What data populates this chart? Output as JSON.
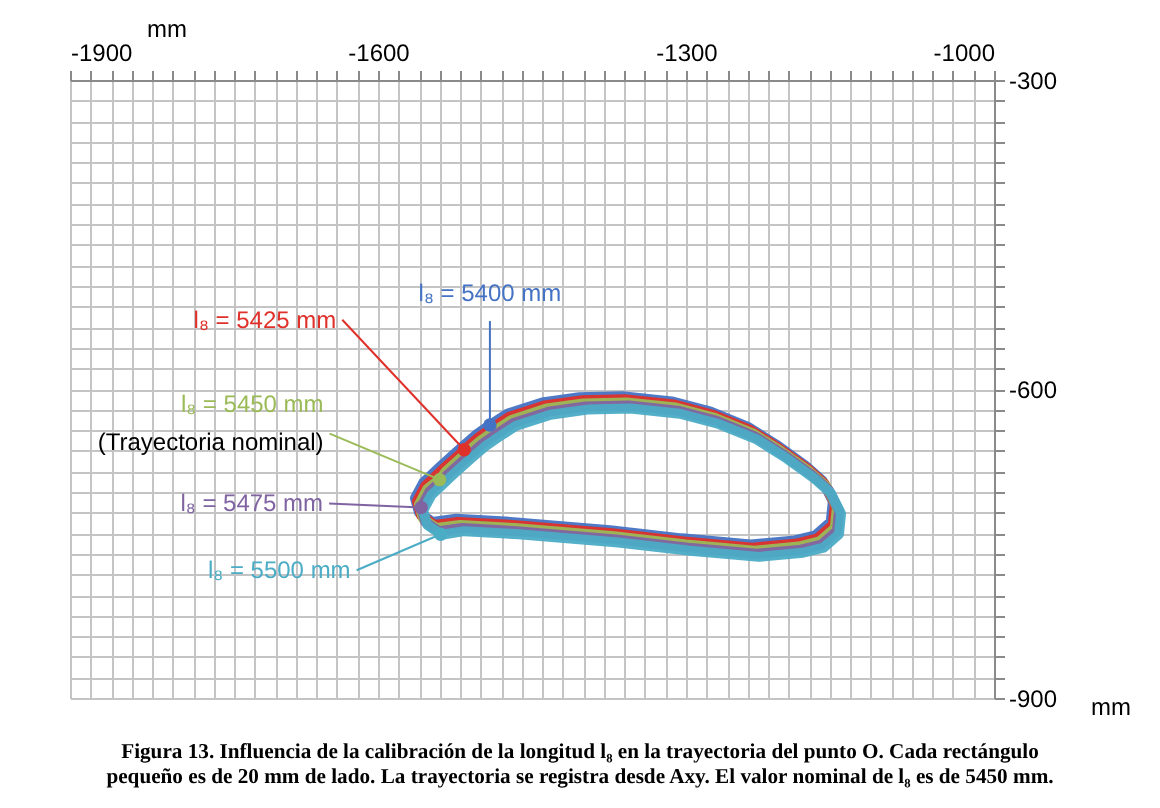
{
  "chart_data": {
    "type": "line",
    "title": "Figura 13. Influencia de la calibración de la longitud l₈ en la trayectoria del punto O. Cada rectángulo\npequeño es de 20 mm de lado. La trayectoria se registra desde Axy. El valor nominal de l₈ es de 5450 mm.",
    "xlabel": "mm",
    "ylabel": "mm",
    "xlim": [
      -1900,
      -1000
    ],
    "ylim": [
      -900,
      -300
    ],
    "xticks": [
      -1900,
      {
        "value": -1880,
        "label": null
      },
      {
        "value": -1860,
        "label": null
      },
      {
        "value": -1840,
        "label": null
      },
      {
        "value": -1820,
        "label": null
      },
      {
        "value": -1800,
        "label": null
      },
      {
        "value": -1780,
        "label": null
      },
      {
        "value": -1760,
        "label": null
      },
      {
        "value": -1740,
        "label": null
      },
      {
        "value": -1720,
        "label": null
      },
      {
        "value": -1700,
        "label": null
      },
      {
        "value": -1680,
        "label": null
      },
      {
        "value": -1660,
        "label": null
      },
      {
        "value": -1640,
        "label": null
      },
      {
        "value": -1620,
        "label": null
      },
      -1600,
      {
        "value": -1580,
        "label": null
      },
      {
        "value": -1560,
        "label": null
      },
      {
        "value": -1540,
        "label": null
      },
      {
        "value": -1520,
        "label": null
      },
      {
        "value": -1500,
        "label": null
      },
      {
        "value": -1480,
        "label": null
      },
      {
        "value": -1460,
        "label": null
      },
      {
        "value": -1440,
        "label": null
      },
      {
        "value": -1420,
        "label": null
      },
      {
        "value": -1400,
        "label": null
      },
      {
        "value": -1380,
        "label": null
      },
      {
        "value": -1360,
        "label": null
      },
      {
        "value": -1340,
        "label": null
      },
      {
        "value": -1320,
        "label": null
      },
      -1300,
      {
        "value": -1280,
        "label": null
      },
      {
        "value": -1260,
        "label": null
      },
      {
        "value": -1240,
        "label": null
      },
      {
        "value": -1220,
        "label": null
      },
      {
        "value": -1200,
        "label": null
      },
      {
        "value": -1180,
        "label": null
      },
      {
        "value": -1160,
        "label": null
      },
      {
        "value": -1140,
        "label": null
      },
      {
        "value": -1120,
        "label": null
      },
      {
        "value": -1100,
        "label": null
      },
      {
        "value": -1080,
        "label": null
      },
      {
        "value": -1060,
        "label": null
      },
      {
        "value": -1040,
        "label": null
      },
      {
        "value": -1020,
        "label": null
      },
      -1000
    ],
    "yticks": [
      -900,
      {
        "value": -880,
        "label": null
      },
      {
        "value": -860,
        "label": null
      },
      {
        "value": -840,
        "label": null
      },
      {
        "value": -820,
        "label": null
      },
      {
        "value": -800,
        "label": null
      },
      {
        "value": -780,
        "label": null
      },
      {
        "value": -760,
        "label": null
      },
      {
        "value": -740,
        "label": null
      },
      {
        "value": -720,
        "label": null
      },
      {
        "value": -700,
        "label": null
      },
      {
        "value": -680,
        "label": null
      },
      {
        "value": -660,
        "label": null
      },
      {
        "value": -640,
        "label": null
      },
      {
        "value": -620,
        "label": null
      },
      -600,
      {
        "value": -580,
        "label": null
      },
      {
        "value": -560,
        "label": null
      },
      {
        "value": -540,
        "label": null
      },
      {
        "value": -520,
        "label": null
      },
      {
        "value": -500,
        "label": null
      },
      {
        "value": -480,
        "label": null
      },
      {
        "value": -460,
        "label": null
      },
      {
        "value": -440,
        "label": null
      },
      {
        "value": -420,
        "label": null
      },
      {
        "value": -400,
        "label": null
      },
      {
        "value": -380,
        "label": null
      },
      {
        "value": -360,
        "label": null
      },
      {
        "value": -340,
        "label": null
      },
      {
        "value": -320,
        "label": null
      },
      -300
    ],
    "grid": true,
    "series": [
      {
        "name": "l₈ = 5400 mm",
        "color": "#4472c4",
        "x": [
          -1491,
          -1474,
          -1440,
          -1404,
          -1362,
          -1314,
          -1276,
          -1239,
          -1212,
          -1184,
          -1167,
          -1157,
          -1159,
          -1174,
          -1194,
          -1237,
          -1304,
          -1374,
          -1471,
          -1524,
          -1547,
          -1560,
          -1564,
          -1556,
          -1538,
          -1518,
          -1504,
          -1494
        ],
        "values": [
          -635,
          -624,
          -613,
          -608,
          -607,
          -612,
          -622,
          -637,
          -654,
          -674,
          -689,
          -709,
          -729,
          -742,
          -747,
          -751,
          -745,
          -737,
          -729,
          -726,
          -729,
          -720,
          -706,
          -691,
          -674,
          -656,
          -644,
          -637
        ]
      },
      {
        "name": "l₈ = 5425 mm",
        "color": "#e0302a",
        "x": [
          -1516,
          -1502,
          -1489,
          -1472,
          -1438,
          -1402,
          -1360,
          -1312,
          -1274,
          -1237,
          -1210,
          -1182,
          -1165,
          -1155,
          -1157,
          -1172,
          -1192,
          -1235,
          -1302,
          -1372,
          -1469,
          -1522,
          -1545,
          -1558,
          -1562,
          -1554,
          -1536,
          -1520
        ],
        "values": [
          -659,
          -647,
          -638,
          -627,
          -616,
          -611,
          -610,
          -615,
          -625,
          -640,
          -657,
          -677,
          -692,
          -712,
          -732,
          -745,
          -750,
          -754,
          -748,
          -740,
          -732,
          -729,
          -732,
          -723,
          -709,
          -694,
          -677,
          -663
        ]
      },
      {
        "name": "l₈ = 5450 mm",
        "color": "#9bbb59",
        "x": [
          -1540,
          -1534,
          -1514,
          -1500,
          -1487,
          -1470,
          -1436,
          -1400,
          -1358,
          -1310,
          -1272,
          -1235,
          -1208,
          -1180,
          -1163,
          -1153,
          -1155,
          -1170,
          -1190,
          -1233,
          -1300,
          -1370,
          -1467,
          -1520,
          -1543,
          -1556,
          -1560,
          -1552,
          -1543
        ],
        "values": [
          -688,
          -680,
          -662,
          -650,
          -641,
          -630,
          -619,
          -614,
          -613,
          -618,
          -628,
          -643,
          -660,
          -680,
          -695,
          -715,
          -735,
          -748,
          -753,
          -757,
          -751,
          -743,
          -735,
          -732,
          -735,
          -726,
          -712,
          -697,
          -690
        ]
      },
      {
        "name": "l₈ = 5475 mm",
        "color": "#8064a2",
        "x": [
          -1558,
          -1550,
          -1532,
          -1512,
          -1498,
          -1485,
          -1468,
          -1434,
          -1398,
          -1356,
          -1308,
          -1270,
          -1233,
          -1206,
          -1178,
          -1161,
          -1151,
          -1153,
          -1168,
          -1188,
          -1231,
          -1298,
          -1368,
          -1465,
          -1518,
          -1541,
          -1554,
          -1557
        ],
        "values": [
          -715,
          -700,
          -683,
          -665,
          -653,
          -644,
          -633,
          -622,
          -617,
          -616,
          -621,
          -631,
          -646,
          -663,
          -683,
          -698,
          -718,
          -738,
          -751,
          -756,
          -760,
          -754,
          -746,
          -738,
          -735,
          -738,
          -729,
          -718
        ]
      },
      {
        "name": "l₈ = 5500 mm",
        "color": "#4bacc6",
        "x": [
          -1539,
          -1552,
          -1556,
          -1548,
          -1530,
          -1510,
          -1496,
          -1483,
          -1466,
          -1432,
          -1396,
          -1354,
          -1306,
          -1268,
          -1231,
          -1204,
          -1176,
          -1159,
          -1149,
          -1151,
          -1166,
          -1186,
          -1229,
          -1296,
          -1366,
          -1463,
          -1516,
          -1535
        ],
        "values": [
          -741,
          -732,
          -718,
          -703,
          -686,
          -668,
          -656,
          -647,
          -636,
          -625,
          -620,
          -619,
          -624,
          -634,
          -649,
          -666,
          -686,
          -701,
          -721,
          -741,
          -754,
          -759,
          -763,
          -757,
          -749,
          -741,
          -738,
          -741
        ]
      }
    ],
    "annotations": [
      {
        "text": "(Trayectoria nominal)",
        "x": -1540,
        "y": -688
      }
    ]
  }
}
